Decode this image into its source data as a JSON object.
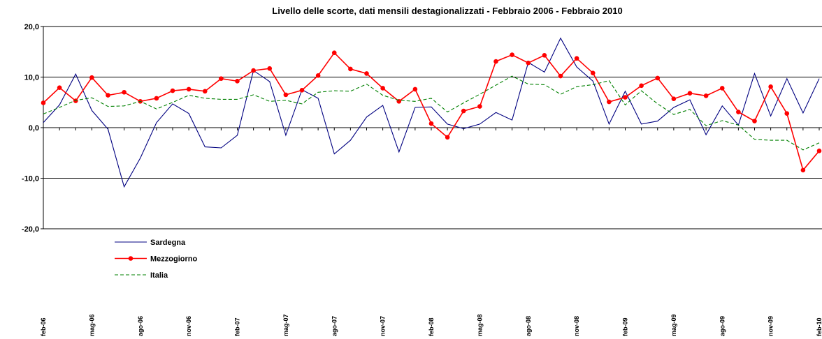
{
  "chart_data": {
    "type": "line",
    "title": "Livello delle scorte, dati mensili destagionalizzati - Febbraio 2006 - Febbraio 2010",
    "categories": [
      "feb-06",
      null,
      null,
      "mag-06",
      null,
      null,
      "ago-06",
      null,
      null,
      "nov-06",
      null,
      null,
      "feb-07",
      null,
      null,
      "mag-07",
      null,
      null,
      "ago-07",
      null,
      null,
      "nov-07",
      null,
      null,
      "feb-08",
      null,
      null,
      "mag-08",
      null,
      null,
      "ago-08",
      null,
      null,
      "nov-08",
      null,
      null,
      "feb-09",
      null,
      null,
      "mag-09",
      null,
      null,
      "ago-09",
      null,
      null,
      "nov-09",
      null,
      null,
      "feb-10"
    ],
    "series": [
      {
        "name": "Sardegna",
        "color": "#000080",
        "style": "solid",
        "marker": false,
        "values": [
          1.0,
          4.5,
          10.6,
          3.4,
          -0.3,
          -11.7,
          -6.0,
          1.0,
          4.7,
          2.8,
          -3.8,
          -4.0,
          -1.5,
          11.3,
          9.1,
          -1.5,
          7.5,
          5.8,
          -5.2,
          -2.5,
          2.1,
          4.4,
          -4.8,
          4.0,
          4.1,
          0.7,
          -0.2,
          0.7,
          3.0,
          1.5,
          12.9,
          11.0,
          17.7,
          12.0,
          9.2,
          0.7,
          7.2,
          0.7,
          1.3,
          4.0,
          5.5,
          -1.4,
          4.3,
          0.5,
          10.7,
          2.3,
          9.7,
          2.9,
          9.7
        ]
      },
      {
        "name": "Mezzogiorno",
        "color": "#ff0000",
        "style": "solid",
        "marker": true,
        "values": [
          4.9,
          7.9,
          5.3,
          9.9,
          6.4,
          7.0,
          5.2,
          5.8,
          7.3,
          7.6,
          7.2,
          9.7,
          9.2,
          11.3,
          11.7,
          6.5,
          7.4,
          10.3,
          14.8,
          11.6,
          10.7,
          7.8,
          5.2,
          7.6,
          0.8,
          -1.9,
          3.3,
          4.2,
          13.1,
          14.4,
          12.8,
          14.3,
          10.2,
          13.7,
          10.8,
          5.1,
          6.0,
          8.3,
          9.8,
          5.7,
          6.8,
          6.3,
          7.8,
          3.1,
          1.3,
          8.1,
          2.8,
          -8.4,
          -4.6
        ]
      },
      {
        "name": "Italia",
        "color": "#008000",
        "style": "dashed",
        "marker": false,
        "values": [
          2.7,
          4.0,
          5.4,
          5.9,
          4.2,
          4.3,
          5.2,
          3.7,
          5.0,
          6.4,
          5.8,
          5.6,
          5.6,
          6.5,
          5.2,
          5.4,
          4.7,
          7.0,
          7.3,
          7.2,
          8.6,
          6.4,
          5.4,
          5.2,
          5.8,
          3.1,
          4.9,
          6.6,
          8.4,
          10.2,
          8.6,
          8.5,
          6.6,
          8.1,
          8.5,
          9.3,
          4.5,
          7.3,
          4.7,
          2.6,
          3.6,
          0.4,
          1.4,
          0.5,
          -2.3,
          -2.5,
          -2.5,
          -4.4,
          -3.0
        ]
      }
    ],
    "ylim": [
      -20,
      20
    ],
    "yticks": [
      {
        "value": -20,
        "label": "-20,0"
      },
      {
        "value": -10,
        "label": "-10,0"
      },
      {
        "value": 0,
        "label": "0,0"
      },
      {
        "value": 10,
        "label": "10,0"
      },
      {
        "value": 20,
        "label": "20,0"
      }
    ],
    "grid": true
  }
}
